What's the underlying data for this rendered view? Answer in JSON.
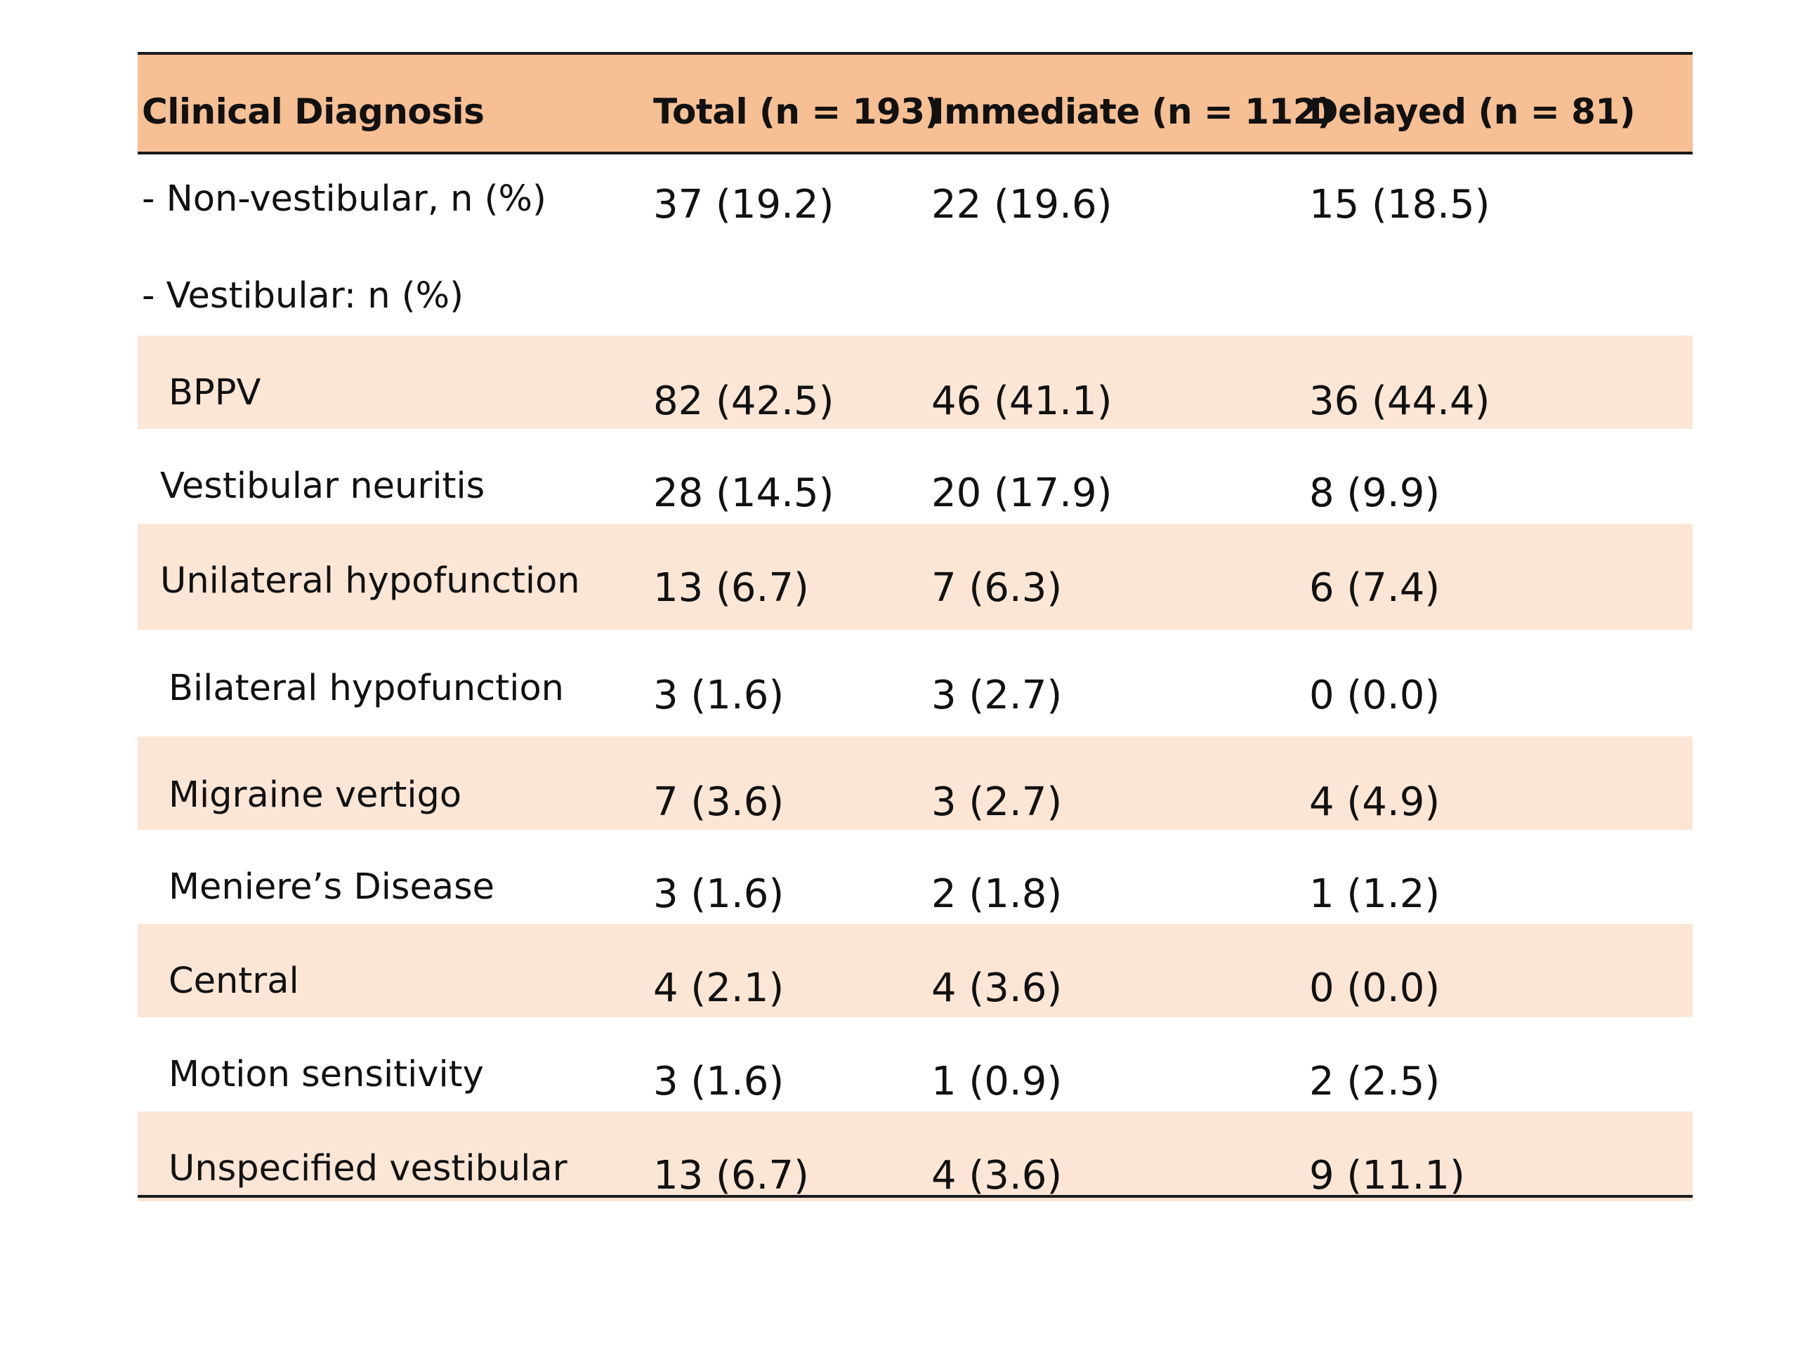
{
  "table": {
    "headers": [
      "Clinical Diagnosis",
      "Total (n = 193)",
      "Immediate (n = 112)",
      "Delayed (n = 81)"
    ],
    "rows": [
      {
        "label": "- Non-vestibular, n (%)",
        "total": "37 (19.2)",
        "immediate": "22 (19.6)",
        "delayed": "15 (18.5)"
      },
      {
        "label": "- Vestibular: n (%)",
        "total": "",
        "immediate": "",
        "delayed": ""
      },
      {
        "label": "BPPV",
        "total": "82 (42.5)",
        "immediate": "46 (41.1)",
        "delayed": "36 (44.4)"
      },
      {
        "label": "Vestibular neuritis",
        "total": "28 (14.5)",
        "immediate": "20 (17.9)",
        "delayed": "8 (9.9)"
      },
      {
        "label": "Unilateral hypofunction",
        "total": "13 (6.7)",
        "immediate": "7 (6.3)",
        "delayed": "6 (7.4)"
      },
      {
        "label": "Bilateral hypofunction",
        "total": "3 (1.6)",
        "immediate": "3 (2.7)",
        "delayed": "0 (0.0)"
      },
      {
        "label": "Migraine vertigo",
        "total": "7 (3.6)",
        "immediate": "3 (2.7)",
        "delayed": "4 (4.9)"
      },
      {
        "label": "Meniere’s Disease",
        "total": "3 (1.6)",
        "immediate": "2 (1.8)",
        "delayed": "1 (1.2)"
      },
      {
        "label": "Central",
        "total": "4 (2.1)",
        "immediate": "4 (3.6)",
        "delayed": "0 (0.0)"
      },
      {
        "label": "Motion sensitivity",
        "total": "3 (1.6)",
        "immediate": "1 (0.9)",
        "delayed": "2 (2.5)"
      },
      {
        "label": "Unspecified vestibular",
        "total": "13 (6.7)",
        "immediate": "4 (3.6)",
        "delayed": "9 (11.1)"
      }
    ]
  },
  "colors": {
    "header_fill": "#f7bf94",
    "band_fill": "#fbe6d6",
    "rule": "#1a1a1a"
  }
}
